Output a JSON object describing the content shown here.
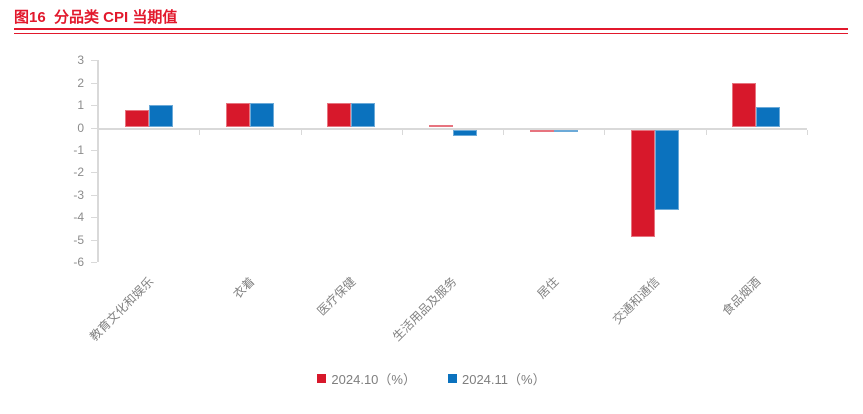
{
  "header": {
    "title": "图16  分品类 CPI 当期值"
  },
  "colors": {
    "title_red": "#e2182c",
    "rule_red": "#e2182c",
    "bar_red": "#d7182b",
    "bar_blue": "#0b72be",
    "axis_gray": "#d9d9d9",
    "label_gray": "#828282"
  },
  "chart_data": {
    "type": "bar",
    "title": "图16 分品类 CPI 当期值",
    "categories": [
      "教育文化和娱乐",
      "衣着",
      "医疗保健",
      "生活用品及服务",
      "居住",
      "交通和通信",
      "食品烟酒"
    ],
    "series": [
      {
        "name": "2024.10（%）",
        "color": "#d7182b",
        "values": [
          0.8,
          1.1,
          1.1,
          0.1,
          -0.1,
          -4.8,
          2.0
        ]
      },
      {
        "name": "2024.11（%）",
        "color": "#0b72be",
        "values": [
          1.0,
          1.1,
          1.1,
          -0.3,
          -0.1,
          -3.6,
          0.9
        ]
      }
    ],
    "ylabel": "",
    "xlabel": "",
    "ylim": [
      -6,
      3
    ],
    "y_ticks": [
      3,
      2,
      1,
      0,
      -1,
      -2,
      -3,
      -4,
      -5,
      -6
    ],
    "grid": false,
    "legend_position": "bottom"
  }
}
